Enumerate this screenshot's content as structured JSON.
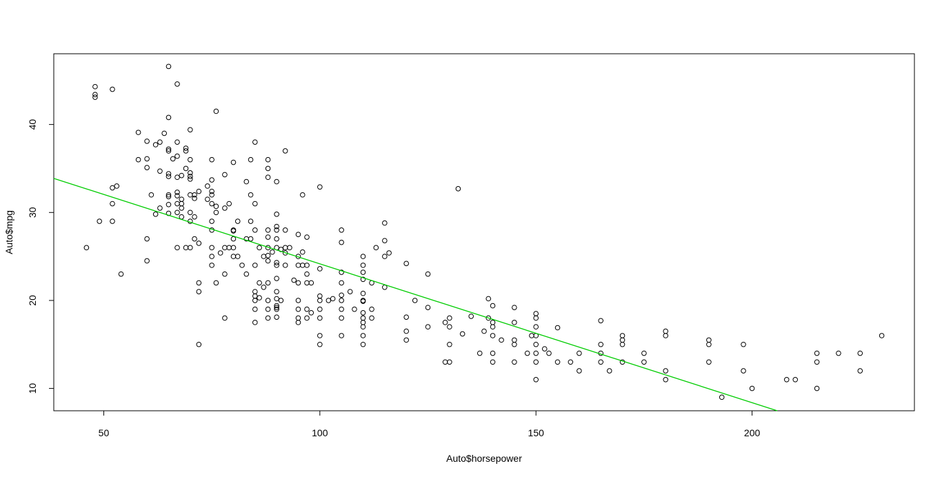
{
  "chart_data": {
    "type": "scatter",
    "title": "",
    "xlabel": "Auto$horsepower",
    "ylabel": "Auto$mpg",
    "xlim": [
      38.44,
      237.56
    ],
    "ylim": [
      7.46,
      48.04
    ],
    "x_ticks": [
      50,
      100,
      150,
      200
    ],
    "y_ticks": [
      10,
      20,
      30,
      40
    ],
    "x_tick_labels": [
      "50",
      "100",
      "150",
      "200"
    ],
    "y_tick_labels": [
      "10",
      "20",
      "30",
      "40"
    ],
    "grid": false,
    "legend": "none",
    "point_color": "#000000",
    "line_color": "#00cc00",
    "regression_line": {
      "intercept": 39.94,
      "slope": -0.1578
    },
    "points": [
      [
        46,
        26
      ],
      [
        48,
        43.1
      ],
      [
        48,
        43.4
      ],
      [
        48,
        44.3
      ],
      [
        49,
        29
      ],
      [
        52,
        29
      ],
      [
        52,
        31
      ],
      [
        52,
        32.8
      ],
      [
        52,
        44
      ],
      [
        53,
        33
      ],
      [
        54,
        23
      ],
      [
        58,
        39.1
      ],
      [
        58,
        36
      ],
      [
        60,
        38.1
      ],
      [
        60,
        36.1
      ],
      [
        60,
        35.1
      ],
      [
        60,
        27
      ],
      [
        60,
        24.5
      ],
      [
        61,
        32
      ],
      [
        62,
        37.7
      ],
      [
        62,
        29.8
      ],
      [
        63,
        38
      ],
      [
        63,
        34.7
      ],
      [
        63,
        30.5
      ],
      [
        64,
        39
      ],
      [
        65,
        46.6
      ],
      [
        65,
        40.8
      ],
      [
        65,
        37.2
      ],
      [
        65,
        37
      ],
      [
        65,
        34.4
      ],
      [
        65,
        34.1
      ],
      [
        65,
        32
      ],
      [
        65,
        31.8
      ],
      [
        65,
        30.9
      ],
      [
        65,
        29.9
      ],
      [
        66,
        36.1
      ],
      [
        67,
        44.6
      ],
      [
        67,
        38
      ],
      [
        67,
        36.4
      ],
      [
        67,
        34
      ],
      [
        67,
        32.3
      ],
      [
        67,
        31.9
      ],
      [
        67,
        31
      ],
      [
        67,
        30
      ],
      [
        67,
        26
      ],
      [
        68,
        34.2
      ],
      [
        68,
        31.5
      ],
      [
        68,
        29.5
      ],
      [
        68,
        31
      ],
      [
        68,
        30.5
      ],
      [
        69,
        37
      ],
      [
        69,
        35
      ],
      [
        69,
        37.3
      ],
      [
        69,
        26
      ],
      [
        70,
        39.4
      ],
      [
        70,
        36
      ],
      [
        70,
        34.5
      ],
      [
        70,
        33.8
      ],
      [
        70,
        34.1
      ],
      [
        70,
        32
      ],
      [
        70,
        30
      ],
      [
        70,
        29
      ],
      [
        70,
        26
      ],
      [
        71,
        32
      ],
      [
        71,
        31.6
      ],
      [
        71,
        29.5
      ],
      [
        71,
        27
      ],
      [
        72,
        32.4
      ],
      [
        72,
        26.5
      ],
      [
        72,
        22
      ],
      [
        72,
        21
      ],
      [
        72,
        15
      ],
      [
        74,
        33
      ],
      [
        74,
        31.5
      ],
      [
        75,
        36
      ],
      [
        75,
        33.7
      ],
      [
        75,
        32.4
      ],
      [
        75,
        32
      ],
      [
        75,
        31
      ],
      [
        75,
        29
      ],
      [
        75,
        28
      ],
      [
        75,
        26
      ],
      [
        75,
        25
      ],
      [
        75,
        24
      ],
      [
        76,
        30.7
      ],
      [
        76,
        41.5
      ],
      [
        76,
        30
      ],
      [
        76,
        22
      ],
      [
        77,
        25.4
      ],
      [
        78,
        34.3
      ],
      [
        78,
        30.5
      ],
      [
        78,
        26
      ],
      [
        78,
        23
      ],
      [
        78,
        18
      ],
      [
        79,
        31
      ],
      [
        79,
        26
      ],
      [
        80,
        35.7
      ],
      [
        80,
        28
      ],
      [
        80,
        27.9
      ],
      [
        80,
        27
      ],
      [
        80,
        26
      ],
      [
        80,
        25
      ],
      [
        81,
        29
      ],
      [
        81,
        25
      ],
      [
        82,
        24
      ],
      [
        83,
        33.5
      ],
      [
        83,
        27
      ],
      [
        83,
        23
      ],
      [
        84,
        36
      ],
      [
        84,
        32
      ],
      [
        84,
        29
      ],
      [
        84,
        27
      ],
      [
        85,
        38
      ],
      [
        85,
        31
      ],
      [
        85,
        28
      ],
      [
        85,
        24
      ],
      [
        85,
        21
      ],
      [
        85,
        20.5
      ],
      [
        85,
        20
      ],
      [
        85,
        19
      ],
      [
        85,
        17.5
      ],
      [
        86,
        26
      ],
      [
        86,
        22
      ],
      [
        86,
        20.3
      ],
      [
        87,
        25
      ],
      [
        87,
        21.5
      ],
      [
        88,
        36
      ],
      [
        88,
        35
      ],
      [
        88,
        34
      ],
      [
        88,
        28
      ],
      [
        88,
        27.2
      ],
      [
        88,
        26
      ],
      [
        88,
        25.1
      ],
      [
        88,
        24.5
      ],
      [
        88,
        22
      ],
      [
        88,
        20
      ],
      [
        88,
        19
      ],
      [
        88,
        18
      ],
      [
        89,
        25.5
      ],
      [
        90,
        33.5
      ],
      [
        90,
        29.8
      ],
      [
        90,
        28.4
      ],
      [
        90,
        28
      ],
      [
        90,
        27
      ],
      [
        90,
        26
      ],
      [
        90,
        24.3
      ],
      [
        90,
        24
      ],
      [
        90,
        22.5
      ],
      [
        90,
        21
      ],
      [
        90,
        20.2
      ],
      [
        90,
        19.4
      ],
      [
        90,
        19.2
      ],
      [
        90,
        19
      ],
      [
        90,
        18.1
      ],
      [
        91,
        25.8
      ],
      [
        91,
        20
      ],
      [
        92,
        37
      ],
      [
        92,
        28
      ],
      [
        92,
        26
      ],
      [
        92,
        25.4
      ],
      [
        92,
        24
      ],
      [
        93,
        26
      ],
      [
        94,
        22.3
      ],
      [
        95,
        27.5
      ],
      [
        95,
        25
      ],
      [
        95,
        24
      ],
      [
        95,
        22
      ],
      [
        95,
        20
      ],
      [
        95,
        19
      ],
      [
        95,
        18
      ],
      [
        95,
        17.5
      ],
      [
        96,
        32
      ],
      [
        96,
        25.5
      ],
      [
        96,
        24
      ],
      [
        97,
        27.2
      ],
      [
        97,
        24
      ],
      [
        97,
        23
      ],
      [
        97,
        22
      ],
      [
        97,
        19
      ],
      [
        97,
        18
      ],
      [
        98,
        22
      ],
      [
        98,
        18.6
      ],
      [
        100,
        32.9
      ],
      [
        100,
        23.6
      ],
      [
        100,
        20.5
      ],
      [
        100,
        20
      ],
      [
        100,
        19
      ],
      [
        100,
        18
      ],
      [
        100,
        16
      ],
      [
        100,
        15
      ],
      [
        102,
        20
      ],
      [
        103,
        20.2
      ],
      [
        105,
        28
      ],
      [
        105,
        26.6
      ],
      [
        105,
        23.2
      ],
      [
        105,
        22
      ],
      [
        105,
        20.6
      ],
      [
        105,
        20
      ],
      [
        105,
        19
      ],
      [
        105,
        18
      ],
      [
        105,
        16
      ],
      [
        107,
        21
      ],
      [
        108,
        19
      ],
      [
        110,
        25
      ],
      [
        110,
        24
      ],
      [
        110,
        23.2
      ],
      [
        110,
        22.4
      ],
      [
        110,
        20.8
      ],
      [
        110,
        20
      ],
      [
        110,
        19.9
      ],
      [
        110,
        18.6
      ],
      [
        110,
        18
      ],
      [
        110,
        17.5
      ],
      [
        110,
        17
      ],
      [
        110,
        16
      ],
      [
        110,
        15
      ],
      [
        112,
        22
      ],
      [
        112,
        19
      ],
      [
        112,
        18
      ],
      [
        113,
        26
      ],
      [
        115,
        28.8
      ],
      [
        115,
        26.8
      ],
      [
        115,
        25
      ],
      [
        115,
        21.5
      ],
      [
        116,
        25.4
      ],
      [
        120,
        24.2
      ],
      [
        120,
        18.1
      ],
      [
        120,
        16.5
      ],
      [
        120,
        15.5
      ],
      [
        122,
        20
      ],
      [
        125,
        23
      ],
      [
        125,
        19.2
      ],
      [
        125,
        17
      ],
      [
        129,
        17.5
      ],
      [
        129,
        13
      ],
      [
        130,
        18
      ],
      [
        130,
        17
      ],
      [
        130,
        15
      ],
      [
        130,
        13
      ],
      [
        132,
        32.7
      ],
      [
        133,
        16.2
      ],
      [
        135,
        18.2
      ],
      [
        137,
        14
      ],
      [
        138,
        16.5
      ],
      [
        139,
        20.2
      ],
      [
        139,
        18
      ],
      [
        140,
        19.4
      ],
      [
        140,
        17.5
      ],
      [
        140,
        17
      ],
      [
        140,
        16
      ],
      [
        140,
        14
      ],
      [
        140,
        13
      ],
      [
        142,
        15.5
      ],
      [
        145,
        19.2
      ],
      [
        145,
        17.5
      ],
      [
        145,
        15.5
      ],
      [
        145,
        15
      ],
      [
        145,
        13
      ],
      [
        148,
        14
      ],
      [
        149,
        16
      ],
      [
        150,
        18.5
      ],
      [
        150,
        18
      ],
      [
        150,
        17
      ],
      [
        150,
        16
      ],
      [
        150,
        15
      ],
      [
        150,
        14
      ],
      [
        150,
        13
      ],
      [
        150,
        11
      ],
      [
        152,
        14.5
      ],
      [
        153,
        14
      ],
      [
        155,
        13
      ],
      [
        155,
        16.9
      ],
      [
        158,
        13
      ],
      [
        160,
        14
      ],
      [
        160,
        12
      ],
      [
        165,
        17.7
      ],
      [
        165,
        15
      ],
      [
        165,
        14
      ],
      [
        165,
        13
      ],
      [
        167,
        12
      ],
      [
        170,
        16
      ],
      [
        170,
        15.5
      ],
      [
        170,
        15
      ],
      [
        170,
        13
      ],
      [
        175,
        14
      ],
      [
        175,
        13
      ],
      [
        180,
        16.5
      ],
      [
        180,
        16
      ],
      [
        180,
        12
      ],
      [
        180,
        11
      ],
      [
        190,
        15.5
      ],
      [
        190,
        15
      ],
      [
        190,
        13
      ],
      [
        193,
        9
      ],
      [
        198,
        15
      ],
      [
        198,
        12
      ],
      [
        200,
        10
      ],
      [
        208,
        11
      ],
      [
        210,
        11
      ],
      [
        215,
        14
      ],
      [
        215,
        13
      ],
      [
        215,
        10
      ],
      [
        220,
        14
      ],
      [
        225,
        14
      ],
      [
        225,
        12
      ],
      [
        230,
        16
      ]
    ]
  }
}
